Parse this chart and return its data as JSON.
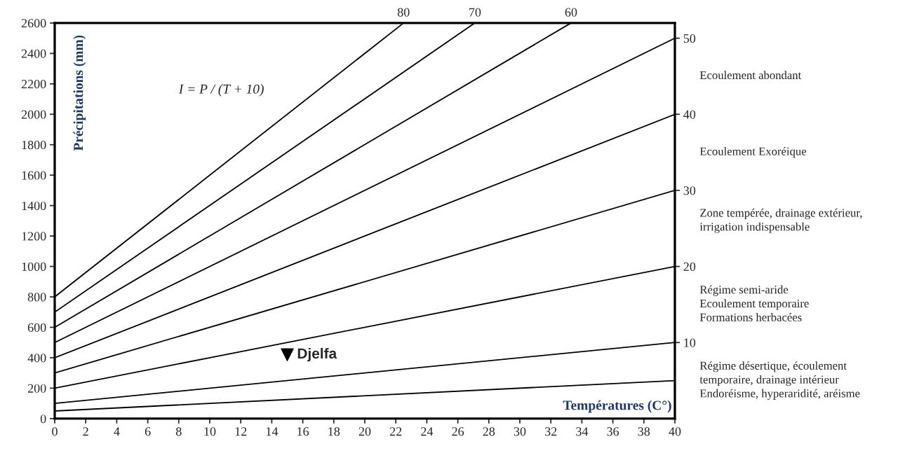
{
  "chart_data": {
    "type": "line",
    "ylabel": "Précipitations (mm)",
    "xlabel": "Températures (C°)",
    "xlim": [
      0,
      40
    ],
    "xticks": [
      0,
      2,
      4,
      6,
      8,
      10,
      12,
      14,
      16,
      18,
      20,
      22,
      24,
      26,
      28,
      30,
      32,
      34,
      36,
      38,
      40
    ],
    "ylim": [
      0,
      2600
    ],
    "yticks": [
      0,
      200,
      400,
      600,
      800,
      1000,
      1200,
      1400,
      1600,
      1800,
      2000,
      2200,
      2400,
      2600
    ],
    "y2lim": [
      0,
      52
    ],
    "y2ticks": [
      10,
      20,
      30,
      40,
      50
    ],
    "grid": false,
    "legend": false,
    "line_style": "solid",
    "series": [
      {
        "name": "80",
        "color": "#000000",
        "x": [
          0,
          22.5
        ],
        "values": [
          800,
          2600
        ]
      },
      {
        "name": "70",
        "color": "#000000",
        "x": [
          0,
          27.1
        ],
        "values": [
          700,
          2600
        ]
      },
      {
        "name": "60",
        "color": "#000000",
        "x": [
          0,
          33.3
        ],
        "values": [
          600,
          2600
        ]
      },
      {
        "color": "#000000",
        "x": [
          0,
          40
        ],
        "values": [
          500,
          2500
        ]
      },
      {
        "color": "#000000",
        "x": [
          0,
          40
        ],
        "values": [
          400,
          2000
        ]
      },
      {
        "color": "#000000",
        "x": [
          0,
          40
        ],
        "values": [
          300,
          1500
        ]
      },
      {
        "color": "#000000",
        "x": [
          0,
          40
        ],
        "values": [
          200,
          1000
        ]
      },
      {
        "color": "#000000",
        "x": [
          0,
          40
        ],
        "values": [
          100,
          500
        ]
      },
      {
        "color": "#000000",
        "x": [
          0,
          40
        ],
        "values": [
          50,
          250
        ]
      },
      {
        "name": "Djelfa",
        "type": "scatter",
        "marker": "triangle",
        "color": "#000000",
        "x": [
          15
        ],
        "values": [
          420
        ]
      }
    ],
    "annotations": [
      "I = P / (T + 10)",
      "Ecoulement abondant",
      "Ecoulement Exoréique",
      "Zone tempérée, drainage extérieur,\nirrigation indispensable",
      "Régime semi-aride\nEcoulement temporaire\nFormations herbacées",
      "Régime désertique, écoulement\ntemporaire, drainage intérieur\nEndoréisme, hyperaridité, aréisme"
    ]
  }
}
